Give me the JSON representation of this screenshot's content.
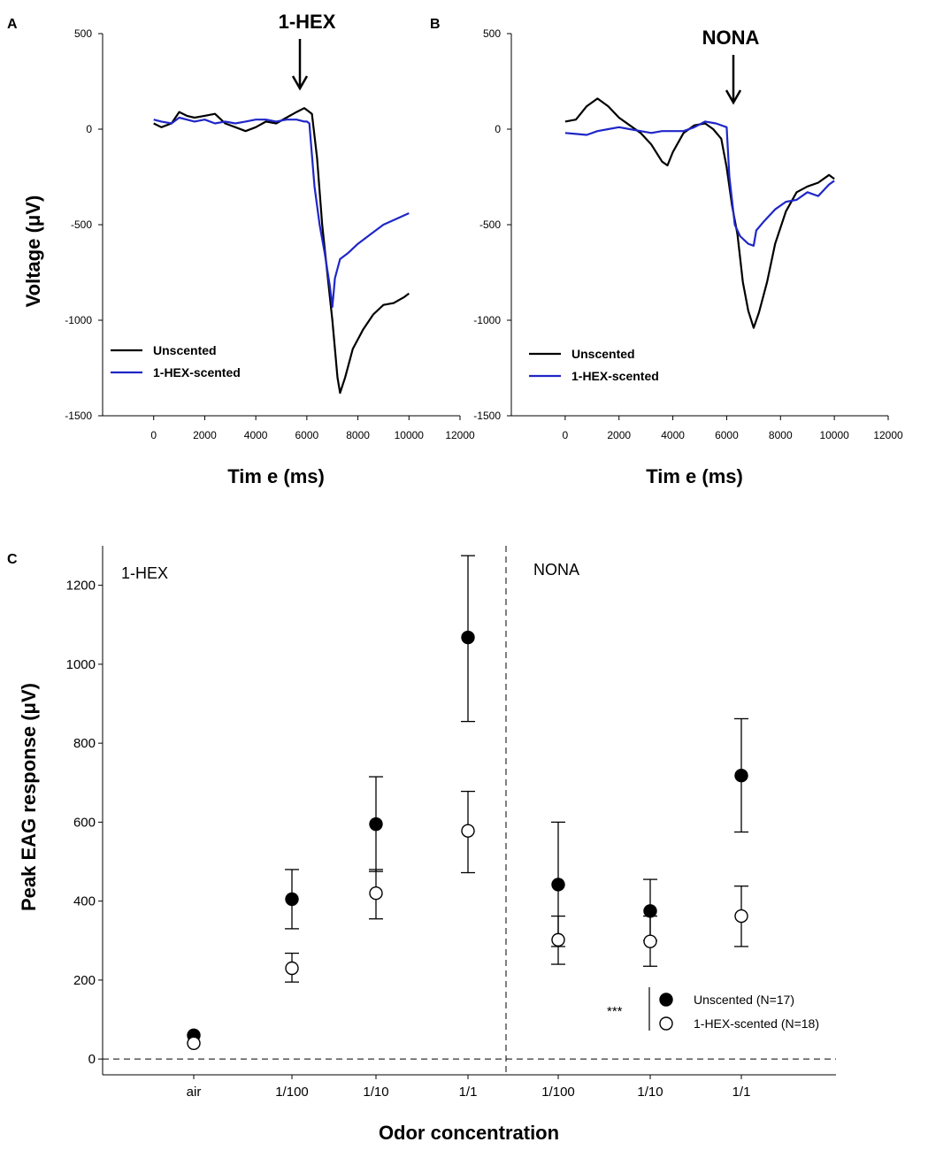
{
  "chart_data": [
    {
      "panel": "A",
      "type": "line",
      "title": "1-HEX",
      "xlabel": "Tim e (ms)",
      "ylabel": "Voltage (μV)",
      "xlim": [
        -2000,
        12000
      ],
      "ylim": [
        -1500,
        500
      ],
      "xticks": [
        "0",
        "2000",
        "4000",
        "6000",
        "8000",
        "10000",
        "12000"
      ],
      "yticks": [
        "500",
        "0",
        "-500",
        "-1000",
        "-1500"
      ],
      "stimulus_time": 6000,
      "legend_position": "bottom-left",
      "series": [
        {
          "name": "Unscented",
          "color": "#000000",
          "x": [
            0,
            300,
            700,
            1000,
            1300,
            1600,
            2000,
            2400,
            2800,
            3200,
            3600,
            4000,
            4400,
            4800,
            5200,
            5600,
            5900,
            6000,
            6200,
            6400,
            6600,
            6800,
            7000,
            7200,
            7300,
            7500,
            7800,
            8200,
            8600,
            9000,
            9400,
            9800,
            10000
          ],
          "y": [
            30,
            10,
            30,
            90,
            70,
            60,
            70,
            80,
            30,
            10,
            -10,
            10,
            40,
            30,
            60,
            90,
            110,
            100,
            80,
            -150,
            -500,
            -750,
            -1000,
            -1300,
            -1380,
            -1300,
            -1150,
            -1050,
            -970,
            -920,
            -910,
            -880,
            -860
          ]
        },
        {
          "name": "1-HEX-scented",
          "color": "#1f26c8",
          "x": [
            0,
            300,
            700,
            1000,
            1300,
            1600,
            2000,
            2400,
            2800,
            3200,
            3600,
            4000,
            4400,
            4800,
            5200,
            5600,
            5900,
            6000,
            6100,
            6300,
            6500,
            6700,
            6900,
            7000,
            7100,
            7300,
            7600,
            8000,
            8500,
            9000,
            9500,
            10000
          ],
          "y": [
            50,
            40,
            30,
            60,
            50,
            40,
            50,
            30,
            40,
            30,
            40,
            50,
            50,
            40,
            50,
            50,
            40,
            40,
            30,
            -300,
            -500,
            -650,
            -820,
            -930,
            -780,
            -680,
            -650,
            -600,
            -550,
            -500,
            -470,
            -440
          ]
        }
      ]
    },
    {
      "panel": "B",
      "type": "line",
      "title": "NONA",
      "xlabel": "Tim e (ms)",
      "ylabel": "",
      "xlim": [
        -2000,
        12000
      ],
      "ylim": [
        -1500,
        500
      ],
      "xticks": [
        "0",
        "2000",
        "4000",
        "6000",
        "8000",
        "10000",
        "12000"
      ],
      "yticks": [
        "500",
        "0",
        "-500",
        "-1000",
        "-1500"
      ],
      "stimulus_time": 6000,
      "legend_position": "bottom-left",
      "series": [
        {
          "name": "Unscented",
          "color": "#000000",
          "x": [
            0,
            400,
            800,
            1200,
            1600,
            2000,
            2400,
            2800,
            3200,
            3600,
            3800,
            4000,
            4400,
            4800,
            5200,
            5500,
            5800,
            6000,
            6200,
            6400,
            6600,
            6800,
            7000,
            7200,
            7500,
            7800,
            8200,
            8600,
            9000,
            9400,
            9800,
            10000
          ],
          "y": [
            40,
            50,
            120,
            160,
            120,
            60,
            20,
            -20,
            -80,
            -170,
            -190,
            -120,
            -20,
            20,
            30,
            0,
            -50,
            -200,
            -400,
            -550,
            -800,
            -950,
            -1040,
            -960,
            -800,
            -600,
            -430,
            -330,
            -300,
            -280,
            -240,
            -260
          ]
        },
        {
          "name": "1-HEX-scented",
          "color": "#1f26c8",
          "x": [
            0,
            400,
            800,
            1200,
            1600,
            2000,
            2400,
            2800,
            3200,
            3600,
            4000,
            4400,
            4800,
            5200,
            5600,
            6000,
            6100,
            6300,
            6500,
            6800,
            7000,
            7100,
            7400,
            7800,
            8200,
            8600,
            9000,
            9400,
            9800,
            10000
          ],
          "y": [
            -20,
            -25,
            -30,
            -10,
            0,
            10,
            0,
            -10,
            -20,
            -10,
            -10,
            -10,
            10,
            40,
            30,
            10,
            -250,
            -500,
            -560,
            -600,
            -610,
            -530,
            -480,
            -420,
            -380,
            -370,
            -330,
            -350,
            -290,
            -270
          ]
        }
      ]
    },
    {
      "panel": "C",
      "type": "scatter",
      "xlabel": "Odor concentration",
      "ylabel": "Peak EAG response (μV)",
      "ylim": [
        -40,
        1300
      ],
      "yticks": [
        "0",
        "200",
        "400",
        "600",
        "800",
        "1000",
        "1200"
      ],
      "categories": [
        "air",
        "1/100",
        "1/10",
        "1/1",
        "1/100",
        "1/10",
        "1/1"
      ],
      "groups": [
        {
          "name": "1-HEX",
          "categories": [
            "air",
            "1/100",
            "1/10",
            "1/1"
          ]
        },
        {
          "name": "NONA",
          "categories": [
            "1/100",
            "1/10",
            "1/1"
          ]
        }
      ],
      "significance": "***",
      "legend_position": "bottom-right",
      "series": [
        {
          "name": "Unscented (N=17)",
          "marker": "filled-circle",
          "values": [
            60,
            405,
            595,
            1068,
            442,
            375,
            718
          ],
          "err_low": [
            60,
            330,
            475,
            855,
            285,
            300,
            575
          ],
          "err_high": [
            60,
            480,
            715,
            1275,
            600,
            455,
            862
          ]
        },
        {
          "name": "1-HEX-scented (N=18)",
          "marker": "open-circle",
          "values": [
            40,
            230,
            420,
            578,
            302,
            298,
            362
          ],
          "err_low": [
            40,
            195,
            355,
            472,
            240,
            235,
            285
          ],
          "err_high": [
            40,
            268,
            480,
            678,
            362,
            362,
            438
          ]
        }
      ]
    }
  ]
}
